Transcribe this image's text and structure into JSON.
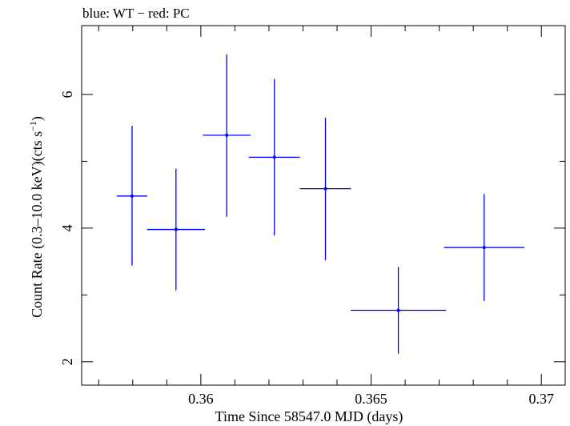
{
  "chart_data": {
    "type": "scatter",
    "title": "blue: WT − red: PC",
    "xlabel": "Time Since 58547.0 MJD (days)",
    "ylabel": "Count Rate (0.3–10.0 keV)(cts s",
    "ylabel_sup": "−1",
    "ylabel_tail": ")",
    "xlim": [
      0.3565,
      0.3707
    ],
    "ylim": [
      1.65,
      7.03
    ],
    "xticks_major": [
      0.36,
      0.365,
      0.37
    ],
    "xtick_labels": [
      "0.36",
      "0.365",
      "0.37"
    ],
    "xticks_minor": [
      0.357,
      0.358,
      0.359,
      0.361,
      0.362,
      0.363,
      0.364,
      0.366,
      0.367,
      0.368,
      0.369
    ],
    "yticks_major": [
      2,
      4,
      6
    ],
    "ytick_labels": [
      "2",
      "4",
      "6"
    ],
    "yticks_minor": [
      3,
      5
    ],
    "grid": false,
    "series": [
      {
        "color": "#0000ff",
        "points": [
          {
            "x": 0.35798,
            "xerr": 0.00045,
            "y": 4.48,
            "yerr_lo": 1.04,
            "yerr_hi": 1.05
          },
          {
            "x": 0.35927,
            "xerr": 0.00085,
            "y": 3.98,
            "yerr_lo": 0.91,
            "yerr_hi": 0.91
          },
          {
            "x": 0.36076,
            "xerr": 0.0007,
            "y": 5.39,
            "yerr_lo": 1.22,
            "yerr_hi": 1.21
          },
          {
            "x": 0.36216,
            "xerr": 0.00075,
            "y": 5.06,
            "yerr_lo": 1.17,
            "yerr_hi": 1.17
          },
          {
            "x": 0.36366,
            "xerr": 0.00075,
            "y": 4.59,
            "yerr_lo": 1.07,
            "yerr_hi": 1.06
          },
          {
            "x": 0.3658,
            "xerr": 0.0014,
            "y": 2.77,
            "yerr_lo": 0.65,
            "yerr_hi": 0.65
          },
          {
            "x": 0.36832,
            "xerr": 0.00118,
            "y": 3.71,
            "yerr_lo": 0.8,
            "yerr_hi": 0.8
          }
        ]
      }
    ]
  }
}
